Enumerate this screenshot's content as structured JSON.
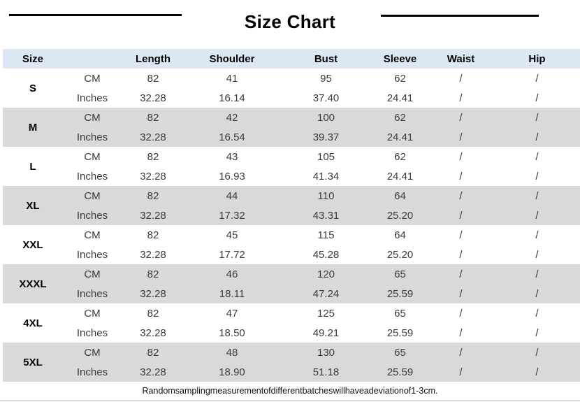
{
  "page": {
    "title": "Size Chart",
    "note": "Randomsamplingmeasurementofdifferentbatcheswillhaveadeviationof1-3cm."
  },
  "colors": {
    "header_bg": "#dce9f5",
    "row_bg": "#ffffff",
    "row_alt_bg": "#d9d9d9",
    "rule": "#000000"
  },
  "chart_data": {
    "type": "table",
    "title": "Size Chart",
    "columns": [
      "Size",
      "",
      "Length",
      "Shoulder",
      "Bust",
      "Sleeve",
      "Waist",
      "Hip"
    ],
    "unit_rows": [
      "CM",
      "Inches"
    ],
    "rows": [
      {
        "size": "S",
        "cm": [
          "82",
          "41",
          "95",
          "62",
          "/",
          "/"
        ],
        "inches": [
          "32.28",
          "16.14",
          "37.40",
          "24.41",
          "/",
          "/"
        ]
      },
      {
        "size": "M",
        "cm": [
          "82",
          "42",
          "100",
          "62",
          "/",
          "/"
        ],
        "inches": [
          "32.28",
          "16.54",
          "39.37",
          "24.41",
          "/",
          "/"
        ]
      },
      {
        "size": "L",
        "cm": [
          "82",
          "43",
          "105",
          "62",
          "/",
          "/"
        ],
        "inches": [
          "32.28",
          "16.93",
          "41.34",
          "24.41",
          "/",
          "/"
        ]
      },
      {
        "size": "XL",
        "cm": [
          "82",
          "44",
          "110",
          "64",
          "/",
          "/"
        ],
        "inches": [
          "32.28",
          "17.32",
          "43.31",
          "25.20",
          "/",
          "/"
        ]
      },
      {
        "size": "XXL",
        "cm": [
          "82",
          "45",
          "115",
          "64",
          "/",
          "/"
        ],
        "inches": [
          "32.28",
          "17.72",
          "45.28",
          "25.20",
          "/",
          "/"
        ]
      },
      {
        "size": "XXXL",
        "cm": [
          "82",
          "46",
          "120",
          "65",
          "/",
          "/"
        ],
        "inches": [
          "32.28",
          "18.11",
          "47.24",
          "25.59",
          "/",
          "/"
        ]
      },
      {
        "size": "4XL",
        "cm": [
          "82",
          "47",
          "125",
          "65",
          "/",
          "/"
        ],
        "inches": [
          "32.28",
          "18.50",
          "49.21",
          "25.59",
          "/",
          "/"
        ]
      },
      {
        "size": "5XL",
        "cm": [
          "82",
          "48",
          "130",
          "65",
          "/",
          "/"
        ],
        "inches": [
          "32.28",
          "18.90",
          "51.18",
          "25.59",
          "/",
          "/"
        ]
      }
    ],
    "note": "Randomsamplingmeasurementofdifferentbatcheswillhaveadeviationof1-3cm."
  }
}
